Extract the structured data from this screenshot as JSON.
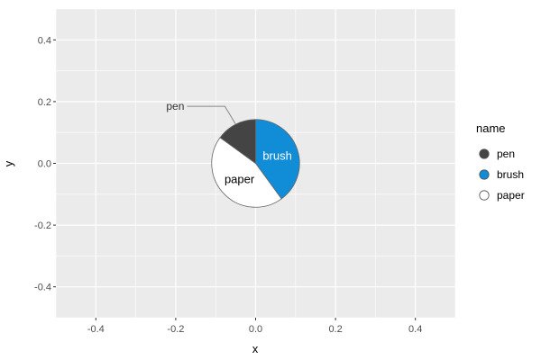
{
  "chart_data": {
    "type": "pie",
    "xlabel": "x",
    "ylabel": "y",
    "xlim": [
      -0.5,
      0.5
    ],
    "ylim": [
      -0.5,
      0.5
    ],
    "x_ticks": [
      {
        "value": -0.4,
        "label": "-0.4"
      },
      {
        "value": -0.2,
        "label": "-0.2"
      },
      {
        "value": 0.0,
        "label": "0.0"
      },
      {
        "value": 0.2,
        "label": "0.2"
      },
      {
        "value": 0.4,
        "label": "0.4"
      }
    ],
    "y_ticks": [
      {
        "value": 0.4,
        "label": "0.4"
      },
      {
        "value": 0.2,
        "label": "0.2"
      },
      {
        "value": 0.0,
        "label": "0.0"
      },
      {
        "value": -0.2,
        "label": "-0.2"
      },
      {
        "value": -0.4,
        "label": "-0.4"
      }
    ],
    "grid": true,
    "center": [
      0.0,
      0.0
    ],
    "radius": 0.11,
    "legend": {
      "title": "name",
      "position": "right"
    },
    "slices": [
      {
        "name": "pen",
        "value": 15,
        "color": "#444444",
        "label": "pen",
        "label_style": "callout",
        "label_color": "#333333"
      },
      {
        "name": "brush",
        "value": 40,
        "color": "#118dd8",
        "label": "brush",
        "label_style": "inside",
        "label_color": "#ffffff"
      },
      {
        "name": "paper",
        "value": 45,
        "color": "#ffffff",
        "label": "paper",
        "label_style": "inside",
        "label_color": "#000000"
      }
    ],
    "slice_order": [
      "brush",
      "paper",
      "pen"
    ],
    "panel_bg": "#ebebeb",
    "grid_color": "#ffffff"
  }
}
